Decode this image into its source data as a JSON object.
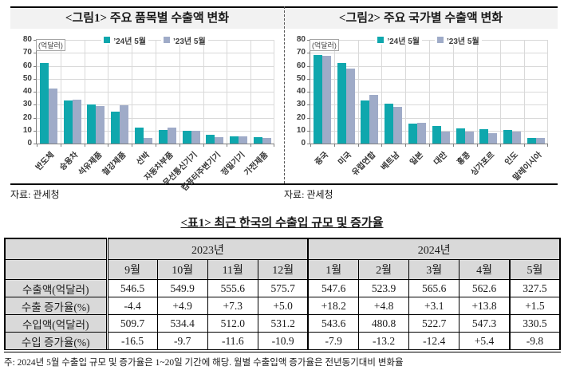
{
  "figures": {
    "source_left": "자료: 관세청",
    "source_right": "자료: 관세청"
  },
  "chart_data": [
    {
      "type": "bar",
      "title": "<그림1> 주요 품목별 수출액 변화",
      "unit_label": "(억달러)",
      "categories": [
        "반도체",
        "승용차",
        "석유제품",
        "철강제품",
        "선박",
        "자동차부품",
        "무선통신기기",
        "컴퓨터주변기기",
        "정밀기기",
        "가전제품"
      ],
      "series": [
        {
          "name": "’24년 5월",
          "color": "#0fa7ad",
          "values": [
            62,
            33,
            30,
            24.5,
            12,
            10.5,
            10,
            7,
            5.5,
            5
          ]
        },
        {
          "name": "’23년 5월",
          "color": "#9fabc8",
          "values": [
            42.5,
            34,
            29,
            29.5,
            4.5,
            12,
            10,
            5,
            5.5,
            4.5
          ]
        }
      ],
      "ylim": [
        0,
        80
      ],
      "ytick_step": 10,
      "grid": true,
      "legend_position": "top"
    },
    {
      "type": "bar",
      "title": "<그림2> 주요 국가별 수출액 변화",
      "unit_label": "(억달러)",
      "categories": [
        "중국",
        "미국",
        "유럽연합",
        "베트남",
        "일본",
        "대만",
        "홍콩",
        "싱가포르",
        "인도",
        "말레이시아"
      ],
      "series": [
        {
          "name": "’24년 5월",
          "color": "#0fa7ad",
          "values": [
            68.5,
            62,
            33,
            31,
            15.5,
            13.5,
            11.5,
            11,
            10.5,
            4.5
          ]
        },
        {
          "name": "’23년 5월",
          "color": "#9fabc8",
          "values": [
            67.5,
            58,
            37.5,
            28,
            16,
            9,
            9.5,
            8,
            9,
            4
          ]
        }
      ],
      "ylim": [
        0,
        80
      ],
      "ytick_step": 10,
      "grid": true,
      "legend_position": "top"
    }
  ],
  "table": {
    "title": "<표1> 최근 한국의 수출입 규모 및 증가율",
    "col_groups": [
      {
        "label": "2023년",
        "span": 4
      },
      {
        "label": "2024년",
        "span": 5
      }
    ],
    "columns": [
      "9월",
      "10월",
      "11월",
      "12월",
      "1월",
      "2월",
      "3월",
      "4월",
      "5월"
    ],
    "rows": [
      {
        "label": "수출액(억달러)",
        "values": [
          "546.5",
          "549.9",
          "555.6",
          "575.7",
          "547.6",
          "523.9",
          "565.6",
          "562.6",
          "327.5"
        ]
      },
      {
        "label": "수출 증가율(%)",
        "values": [
          "-4.4",
          "+4.9",
          "+7.3",
          "+5.0",
          "+18.2",
          "+4.8",
          "+3.1",
          "+13.8",
          "+1.5"
        ]
      },
      {
        "label": "수입액(억달러)",
        "values": [
          "509.7",
          "534.4",
          "512.0",
          "531.2",
          "543.6",
          "480.8",
          "522.7",
          "547.3",
          "330.5"
        ]
      },
      {
        "label": "수입 증가율(%)",
        "values": [
          "-16.5",
          "-9.7",
          "-11.6",
          "-10.9",
          "-7.9",
          "-13.2",
          "-12.4",
          "+5.4",
          "-9.8"
        ]
      }
    ],
    "footnote": "주: 2024년 5월 수출입 규모 및 증가율은 1~20일 기간에 해당. 월별 수출입액 증가율은 전년동기대비 변화율"
  }
}
